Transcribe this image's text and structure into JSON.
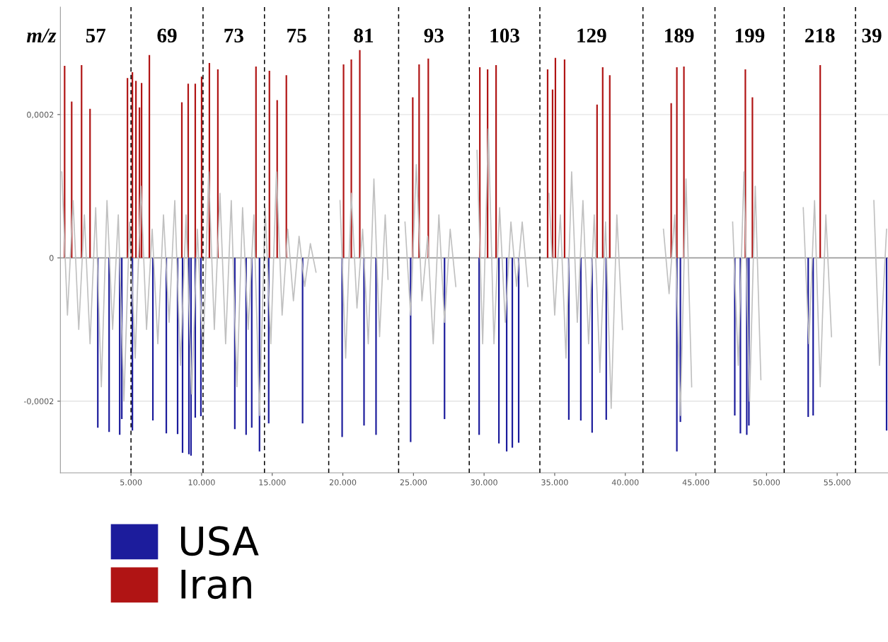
{
  "chart_data": {
    "type": "bar",
    "series": [
      {
        "name": "USA",
        "color": "#1c1c9c",
        "x": [
          2650,
          3450,
          4200,
          4350,
          5100,
          6550,
          7500,
          8300,
          8650,
          9100,
          9250,
          9550,
          9950,
          12350,
          13150,
          13550,
          14100,
          14750,
          17150,
          19950,
          21500,
          22350,
          24800,
          27200,
          29650,
          31050,
          31600,
          32000,
          32450,
          36000,
          36850,
          37650,
          38650,
          43650,
          43900,
          47750,
          48150,
          48600,
          48750,
          52950,
          53300,
          58500
        ],
        "values": [
          -0.000237,
          -0.000243,
          -0.000247,
          -0.000225,
          -0.000241,
          -0.000227,
          -0.000245,
          -0.000246,
          -0.000272,
          -0.000274,
          -0.000276,
          -0.000223,
          -0.000221,
          -0.000239,
          -0.000247,
          -0.000237,
          -0.00027,
          -0.000231,
          -0.000231,
          -0.00025,
          -0.000234,
          -0.000247,
          -0.000257,
          -0.000225,
          -0.000247,
          -0.000259,
          -0.00027,
          -0.000265,
          -0.000258,
          -0.000226,
          -0.000227,
          -0.000244,
          -0.000226,
          -0.00027,
          -0.000229,
          -0.00022,
          -0.000245,
          -0.000247,
          -0.000234,
          -0.000222,
          -0.00022,
          -0.000241
        ]
      },
      {
        "name": "Iran",
        "color": "#b01414",
        "x": [
          300,
          800,
          1500,
          2100,
          4750,
          5100,
          5350,
          5600,
          5750,
          6300,
          8600,
          9050,
          9550,
          10000,
          10550,
          11150,
          13850,
          14800,
          15350,
          16000,
          20050,
          20600,
          21200,
          24950,
          25400,
          26050,
          29700,
          30250,
          30850,
          34500,
          34850,
          35050,
          35700,
          38000,
          38400,
          38900,
          43250,
          43650,
          44150,
          48500,
          49000,
          53800
        ],
        "values": [
          0.000268,
          0.000218,
          0.000269,
          0.000208,
          0.000251,
          0.000259,
          0.000247,
          0.00021,
          0.000244,
          0.000283,
          0.000217,
          0.000243,
          0.000243,
          0.000253,
          0.000272,
          0.000263,
          0.000267,
          0.000261,
          0.00022,
          0.000255,
          0.00027,
          0.000277,
          0.00029,
          0.000224,
          0.00027,
          0.000278,
          0.000266,
          0.000263,
          0.000269,
          0.000263,
          0.000235,
          0.000279,
          0.000277,
          0.000214,
          0.000266,
          0.000255,
          0.000216,
          0.000266,
          0.000267,
          0.000263,
          0.000224,
          0.000269
        ]
      },
      {
        "type": "line",
        "color": "#c0c0c0",
        "x": [
          100,
          500,
          900,
          1300,
          1700,
          2100,
          2500,
          2900,
          3300,
          3700,
          4100,
          4500,
          4900,
          5300,
          5700,
          6100,
          6500,
          6900,
          7300,
          7700,
          8100,
          8500,
          8900,
          9300,
          9700,
          10100,
          10500,
          10900,
          11300,
          11700,
          12100,
          12500,
          12900,
          13300,
          13700,
          14100,
          14500,
          14900,
          15300,
          15700,
          16100,
          16500,
          16900,
          17300,
          17700,
          18100,
          19000,
          19800,
          20200,
          20600,
          21000,
          21400,
          21800,
          22200,
          22600,
          23000,
          23200,
          23700,
          24400,
          24800,
          25200,
          25600,
          26000,
          26400,
          26800,
          27200,
          27600,
          28000,
          28500,
          29500,
          29900,
          30300,
          30700,
          31100,
          31500,
          31900,
          32300,
          32700,
          33100,
          33700,
          34600,
          35000,
          35400,
          35800,
          36200,
          36600,
          37000,
          37400,
          37800,
          38200,
          38600,
          39000,
          39400,
          39800,
          41000,
          42700,
          43100,
          43500,
          43900,
          44300,
          44700,
          46000,
          47600,
          48000,
          48400,
          48800,
          49200,
          49600,
          51000,
          52600,
          53000,
          53400,
          53800,
          54200,
          54600,
          55800,
          57600,
          58000,
          58500
        ],
        "values": [
          0.00012,
          -8e-05,
          8e-05,
          -0.0001,
          6e-05,
          -0.00012,
          7e-05,
          -0.00018,
          8e-05,
          -0.0001,
          6e-05,
          -0.0002,
          5e-05,
          -0.00014,
          0.0001,
          -0.0001,
          4e-05,
          -0.00012,
          6e-05,
          -9e-05,
          8e-05,
          -0.00015,
          6e-05,
          -0.00019,
          4e-05,
          -0.00014,
          0.00012,
          -0.0001,
          9e-05,
          -0.00012,
          8e-05,
          -0.00018,
          7e-05,
          -0.0001,
          6e-05,
          -0.00022,
          7e-05,
          -0.00012,
          0.00012,
          -8e-05,
          4e-05,
          -6e-05,
          3e-05,
          -4e-05,
          2e-05,
          -2e-05,
          null,
          8e-05,
          -0.00014,
          9e-05,
          -7e-05,
          4e-05,
          -0.00012,
          0.00011,
          -0.00011,
          6e-05,
          -3e-05,
          null,
          5e-05,
          -8e-05,
          0.00013,
          -6e-05,
          3e-05,
          -0.00012,
          6e-05,
          -9e-05,
          4e-05,
          -4e-05,
          null,
          0.00015,
          -0.00012,
          0.00018,
          -0.00012,
          7e-05,
          -9e-05,
          5e-05,
          -4e-05,
          5e-05,
          -4e-05,
          null,
          9e-05,
          -8e-05,
          6e-05,
          -0.00014,
          0.00012,
          -9e-05,
          8e-05,
          -0.00012,
          6e-05,
          -0.00016,
          5e-05,
          -0.00021,
          6e-05,
          -0.0001,
          null,
          4e-05,
          -5e-05,
          6e-05,
          -0.00022,
          0.00011,
          -0.00018,
          null,
          5e-05,
          -0.00015,
          0.00012,
          -0.0002,
          0.0001,
          -0.00017,
          null,
          7e-05,
          -0.00012,
          8e-05,
          -0.00018,
          6e-05,
          -0.00011,
          null,
          8e-05,
          -0.00015,
          4e-05
        ]
      }
    ],
    "xlim": [
      0,
      58600
    ],
    "xticks": [
      {
        "value": 5000,
        "label": "5.000"
      },
      {
        "value": 10000,
        "label": "10.000"
      },
      {
        "value": 15000,
        "label": "15.000"
      },
      {
        "value": 20000,
        "label": "20.000"
      },
      {
        "value": 25000,
        "label": "25.000"
      },
      {
        "value": 30000,
        "label": "30.000"
      },
      {
        "value": 35000,
        "label": "35.000"
      },
      {
        "value": 40000,
        "label": "40.000"
      },
      {
        "value": 45000,
        "label": "45.000"
      },
      {
        "value": 50000,
        "label": "50.000"
      },
      {
        "value": 55000,
        "label": "55.000"
      }
    ],
    "ylim": [
      -0.0003,
      0.00035
    ],
    "yticks": [
      {
        "value": -0.0002,
        "label": "-0,0002"
      },
      0,
      {
        "value": 0.0002,
        "label": "0,0002"
      }
    ],
    "grid": "y",
    "legend": "bottom left",
    "ref_lines": [
      {
        "axis": "x",
        "value": 5000,
        "color": "#000000",
        "line_style": "dashed"
      },
      {
        "axis": "x",
        "value": 10100,
        "color": "#000000",
        "line_style": "dashed"
      },
      {
        "axis": "x",
        "value": 14450,
        "color": "#000000",
        "line_style": "dashed"
      },
      {
        "axis": "x",
        "value": 19000,
        "color": "#000000",
        "line_style": "dashed"
      },
      {
        "axis": "x",
        "value": 23950,
        "color": "#000000",
        "line_style": "dashed"
      },
      {
        "axis": "x",
        "value": 28950,
        "color": "#000000",
        "line_style": "dashed"
      },
      {
        "axis": "x",
        "value": 33950,
        "color": "#000000",
        "line_style": "dashed"
      },
      {
        "axis": "x",
        "value": 41250,
        "color": "#000000",
        "line_style": "dashed"
      },
      {
        "axis": "x",
        "value": 46350,
        "color": "#000000",
        "line_style": "dashed"
      },
      {
        "axis": "x",
        "value": 51250,
        "color": "#000000",
        "line_style": "dashed"
      },
      {
        "axis": "x",
        "value": 56300,
        "color": "#000000",
        "line_style": "dashed"
      }
    ],
    "annotations": [
      "m/z",
      "57",
      "69",
      "73",
      "75",
      "81",
      "93",
      "103",
      "129",
      "189",
      "199",
      "218",
      "39"
    ]
  }
}
